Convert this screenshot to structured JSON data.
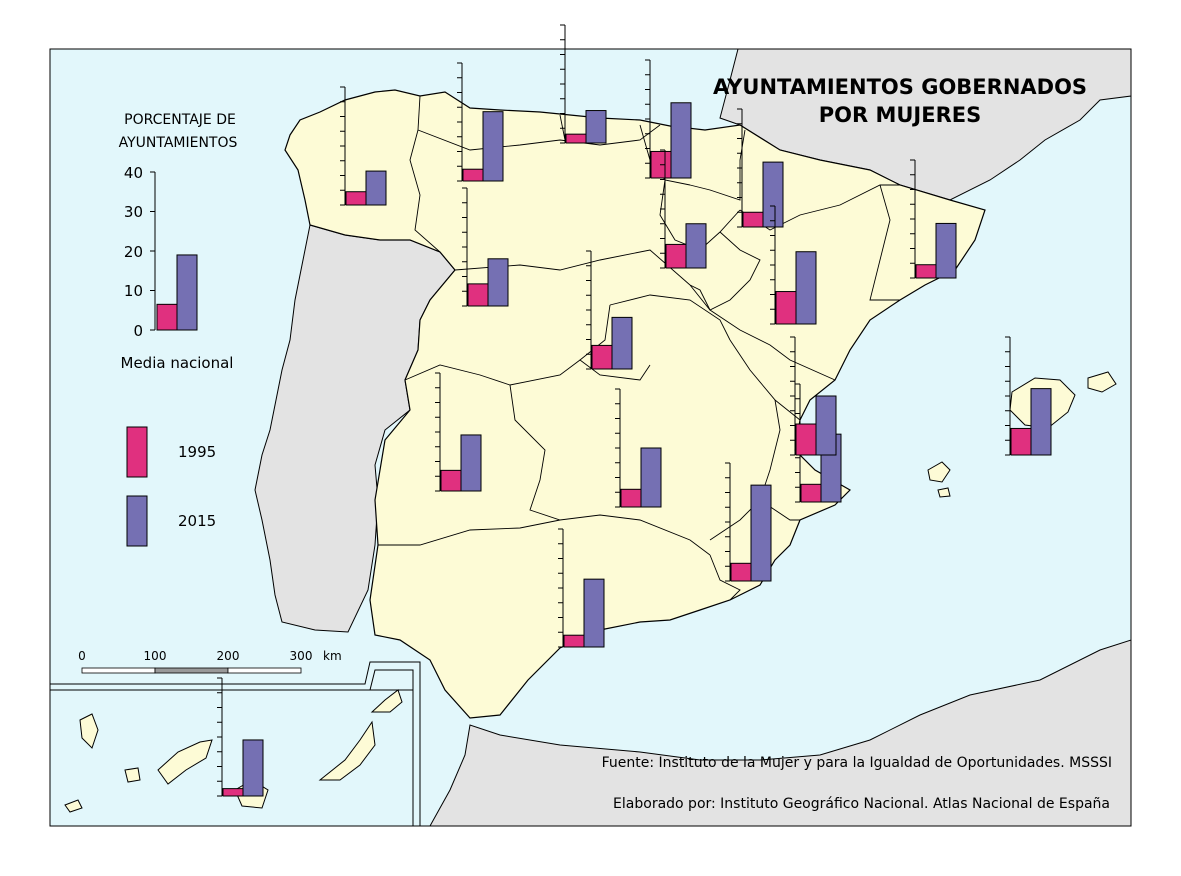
{
  "title": {
    "line1": "AYUNTAMIENTOS GOBERNADOS",
    "line2": "POR MUJERES"
  },
  "legend": {
    "axis_title_line1": "PORCENTAJE DE",
    "axis_title_line2": "AYUNTAMIENTOS",
    "ticks": [
      "40",
      "30",
      "20",
      "10",
      "0"
    ],
    "national_average_label": "Media nacional",
    "national_average": {
      "y1995": 6.5,
      "y2015": 19
    },
    "series": [
      {
        "label": "1995",
        "color": "#e0307f"
      },
      {
        "label": "2015",
        "color": "#7570b3"
      }
    ]
  },
  "scale_bar": {
    "ticks": [
      "0",
      "100",
      "200",
      "300"
    ],
    "unit": "km"
  },
  "source": "Fuente: Instituto de la Mujer y para la Igualdad de Oportunidades. MSSSI",
  "credit": "Elaborado por: Instituto Geográfico Nacional. Atlas Nacional de España",
  "colors": {
    "sea": "#e2f7fb",
    "land_spain": "#fdfbd6",
    "land_other": "#e3e3e3",
    "border": "#000000",
    "c1995": "#e0307f",
    "c2015": "#7570b3"
  },
  "chart_data": {
    "type": "bar",
    "unit": "%",
    "ylim": [
      0,
      40
    ],
    "series_names": [
      "1995",
      "2015"
    ],
    "regions": [
      {
        "y1995": 4.5,
        "y2015": 11.5
      },
      {
        "y1995": 4,
        "y2015": 23.5
      },
      {
        "y1995": 3,
        "y2015": 11
      },
      {
        "y1995": 9,
        "y2015": 25.5
      },
      {
        "y1995": 5,
        "y2015": 22
      },
      {
        "y1995": 8,
        "y2015": 15
      },
      {
        "y1995": 7.5,
        "y2015": 16
      },
      {
        "y1995": 8,
        "y2015": 17.5
      },
      {
        "y1995": 4.5,
        "y2015": 18.5
      },
      {
        "y1995": 11,
        "y2015": 24.5
      },
      {
        "y1995": 7,
        "y2015": 19
      },
      {
        "y1995": 6,
        "y2015": 20
      },
      {
        "y1995": 9,
        "y2015": 22.5
      },
      {
        "y1995": 6,
        "y2015": 23
      },
      {
        "y1995": 6,
        "y2015": 32.5
      },
      {
        "y1995": 4,
        "y2015": 23
      },
      {
        "y1995": 10.5,
        "y2015": 20
      },
      {
        "y1995": 2.5,
        "y2015": 19
      }
    ]
  }
}
